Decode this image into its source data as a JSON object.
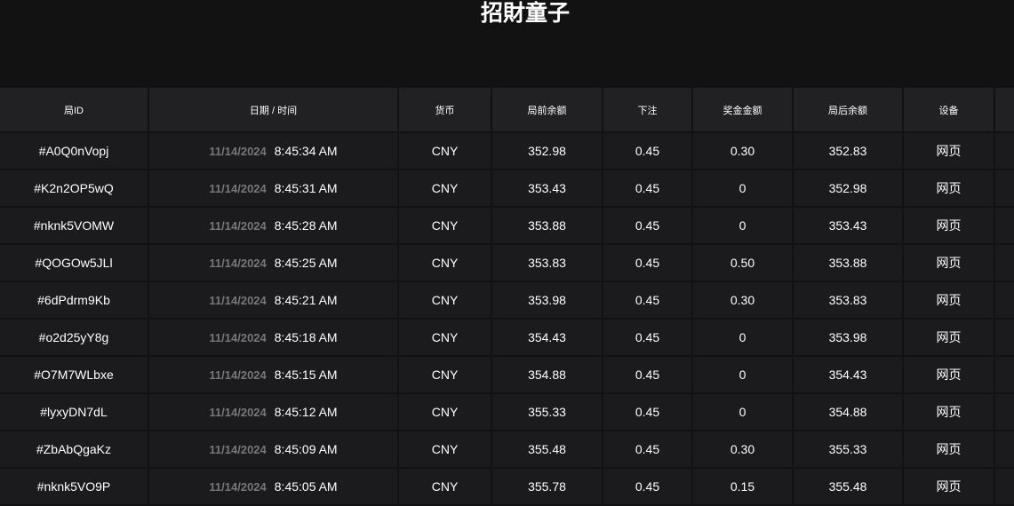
{
  "title": "招財童子",
  "columns": [
    "局ID",
    "日期 / 时间",
    "货币",
    "局前余额",
    "下注",
    "奖金金额",
    "局后余额",
    "设备",
    ""
  ],
  "rows": [
    {
      "id": "#A0Q0nVopj",
      "date": "11/14/2024",
      "time": "8:45:34 AM",
      "currency": "CNY",
      "before": "352.98",
      "bet": "0.45",
      "win": "0.30",
      "after": "352.83",
      "device": "网页"
    },
    {
      "id": "#K2n2OP5wQ",
      "date": "11/14/2024",
      "time": "8:45:31 AM",
      "currency": "CNY",
      "before": "353.43",
      "bet": "0.45",
      "win": "0",
      "after": "352.98",
      "device": "网页"
    },
    {
      "id": "#nknk5VOMW",
      "date": "11/14/2024",
      "time": "8:45:28 AM",
      "currency": "CNY",
      "before": "353.88",
      "bet": "0.45",
      "win": "0",
      "after": "353.43",
      "device": "网页"
    },
    {
      "id": "#QOGOw5JLl",
      "date": "11/14/2024",
      "time": "8:45:25 AM",
      "currency": "CNY",
      "before": "353.83",
      "bet": "0.45",
      "win": "0.50",
      "after": "353.88",
      "device": "网页"
    },
    {
      "id": "#6dPdrm9Kb",
      "date": "11/14/2024",
      "time": "8:45:21 AM",
      "currency": "CNY",
      "before": "353.98",
      "bet": "0.45",
      "win": "0.30",
      "after": "353.83",
      "device": "网页"
    },
    {
      "id": "#o2d25yY8g",
      "date": "11/14/2024",
      "time": "8:45:18 AM",
      "currency": "CNY",
      "before": "354.43",
      "bet": "0.45",
      "win": "0",
      "after": "353.98",
      "device": "网页"
    },
    {
      "id": "#O7M7WLbxe",
      "date": "11/14/2024",
      "time": "8:45:15 AM",
      "currency": "CNY",
      "before": "354.88",
      "bet": "0.45",
      "win": "0",
      "after": "354.43",
      "device": "网页"
    },
    {
      "id": "#lyxyDN7dL",
      "date": "11/14/2024",
      "time": "8:45:12 AM",
      "currency": "CNY",
      "before": "355.33",
      "bet": "0.45",
      "win": "0",
      "after": "354.88",
      "device": "网页"
    },
    {
      "id": "#ZbAbQgaKz",
      "date": "11/14/2024",
      "time": "8:45:09 AM",
      "currency": "CNY",
      "before": "355.48",
      "bet": "0.45",
      "win": "0.30",
      "after": "355.33",
      "device": "网页"
    },
    {
      "id": "#nknk5VO9P",
      "date": "11/14/2024",
      "time": "8:45:05 AM",
      "currency": "CNY",
      "before": "355.78",
      "bet": "0.45",
      "win": "0.15",
      "after": "355.48",
      "device": "网页"
    }
  ]
}
